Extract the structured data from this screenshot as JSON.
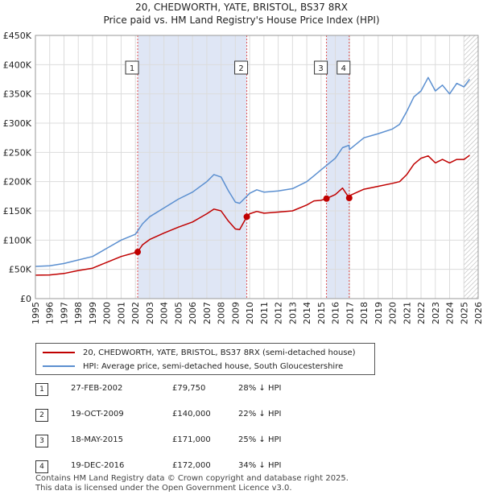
{
  "title_line1": "20, CHEDWORTH, YATE, BRISTOL, BS37 8RX",
  "title_line2": "Price paid vs. HM Land Registry's House Price Index (HPI)",
  "legend": {
    "property_label": "20, CHEDWORTH, YATE, BRISTOL, BS37 8RX (semi-detached house)",
    "hpi_label": "HPI: Average price, semi-detached house, South Gloucestershire"
  },
  "colors": {
    "property": "#c00000",
    "hpi": "#5b8fd0",
    "shade": "#dfe6f5",
    "marker_line": "#e05050"
  },
  "sales": [
    {
      "num": "1",
      "date": "27-FEB-2002",
      "price": "£79,750",
      "delta": "28% ↓ HPI"
    },
    {
      "num": "2",
      "date": "19-OCT-2009",
      "price": "£140,000",
      "delta": "22% ↓ HPI"
    },
    {
      "num": "3",
      "date": "18-MAY-2015",
      "price": "£171,000",
      "delta": "25% ↓ HPI"
    },
    {
      "num": "4",
      "date": "19-DEC-2016",
      "price": "£172,000",
      "delta": "34% ↓ HPI"
    }
  ],
  "footer": {
    "line1": "Contains HM Land Registry data © Crown copyright and database right 2025.",
    "line2": "This data is licensed under the Open Government Licence v3.0."
  },
  "chart_data": {
    "type": "line",
    "title": "Price paid vs. HM Land Registry's House Price Index (HPI)",
    "xlim": [
      1995,
      2026
    ],
    "ylim": [
      0,
      450000
    ],
    "y_ticks": [
      0,
      50000,
      100000,
      150000,
      200000,
      250000,
      300000,
      350000,
      400000,
      450000
    ],
    "y_tick_labels": [
      "£0",
      "£50K",
      "£100K",
      "£150K",
      "£200K",
      "£250K",
      "£300K",
      "£350K",
      "£400K",
      "£450K"
    ],
    "x_ticks": [
      1995,
      1996,
      1997,
      1998,
      1999,
      2000,
      2001,
      2002,
      2003,
      2004,
      2005,
      2006,
      2007,
      2008,
      2009,
      2010,
      2011,
      2012,
      2013,
      2014,
      2015,
      2016,
      2017,
      2018,
      2019,
      2020,
      2021,
      2022,
      2023,
      2024,
      2025,
      2026
    ],
    "shaded_periods": [
      [
        2002.16,
        2009.8
      ],
      [
        2015.38,
        2016.97
      ]
    ],
    "hatched_from": 2025.0,
    "series": [
      {
        "name": "HPI: Average price, semi-detached house, South Gloucestershire",
        "x": [
          1995,
          1996,
          1997,
          1998,
          1999,
          2000,
          2001,
          2002,
          2002.5,
          2003,
          2004,
          2005,
          2006,
          2007,
          2007.5,
          2008,
          2008.5,
          2009,
          2009.3,
          2009.8,
          2010,
          2010.5,
          2011,
          2012,
          2013,
          2014,
          2014.5,
          2015,
          2015.4,
          2016,
          2016.5,
          2016.95,
          2017,
          2018,
          2019,
          2020,
          2020.5,
          2021,
          2021.5,
          2022,
          2022.5,
          2023,
          2023.5,
          2024,
          2024.5,
          2025,
          2025.4
        ],
        "values": [
          55000,
          56000,
          60000,
          66000,
          72000,
          86000,
          100000,
          110000,
          128000,
          140000,
          155000,
          170000,
          182000,
          200000,
          212000,
          208000,
          185000,
          165000,
          163000,
          175000,
          180000,
          186000,
          182000,
          184000,
          188000,
          200000,
          210000,
          220000,
          228000,
          240000,
          258000,
          262000,
          255000,
          275000,
          282000,
          290000,
          298000,
          320000,
          345000,
          355000,
          378000,
          355000,
          365000,
          350000,
          368000,
          362000,
          375000
        ]
      },
      {
        "name": "20, CHEDWORTH, YATE, BRISTOL, BS37 8RX (semi-detached house)",
        "x": [
          1995,
          1996,
          1997,
          1998,
          1999,
          2000,
          2001,
          2002.16,
          2002.5,
          2003,
          2004,
          2005,
          2006,
          2007,
          2007.5,
          2008,
          2008.5,
          2009,
          2009.3,
          2009.8,
          2010,
          2010.5,
          2011,
          2012,
          2013,
          2014,
          2014.5,
          2015,
          2015.38,
          2016,
          2016.5,
          2016.97,
          2017,
          2018,
          2019,
          2020,
          2020.5,
          2021,
          2021.5,
          2022,
          2022.5,
          2023,
          2023.5,
          2024,
          2024.5,
          2025,
          2025.4
        ],
        "values": [
          40000,
          40500,
          43000,
          48000,
          52000,
          62000,
          72000,
          79750,
          92000,
          101000,
          112000,
          122000,
          131000,
          145000,
          153000,
          150000,
          133000,
          119000,
          118000,
          140000,
          145000,
          149000,
          146000,
          148000,
          150000,
          160000,
          167000,
          168000,
          171000,
          178000,
          189000,
          172000,
          176000,
          187000,
          192000,
          197000,
          200000,
          212000,
          230000,
          240000,
          244000,
          232000,
          238000,
          232000,
          238000,
          238000,
          245000
        ]
      }
    ],
    "sale_markers": [
      {
        "label": "1",
        "x": 2002.16,
        "value": 79750
      },
      {
        "label": "2",
        "x": 2009.8,
        "value": 140000
      },
      {
        "label": "3",
        "x": 2015.38,
        "value": 171000
      },
      {
        "label": "4",
        "x": 2016.97,
        "value": 172000
      }
    ]
  }
}
